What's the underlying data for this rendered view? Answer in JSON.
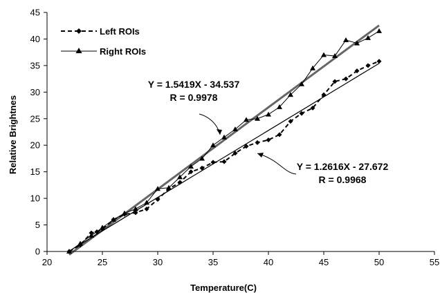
{
  "chart_data": {
    "type": "line",
    "xlabel": "Temperature(C)",
    "ylabel": "Relative Brightnes",
    "xlim": [
      20,
      55
    ],
    "ylim": [
      0,
      45
    ],
    "xticks": [
      20,
      25,
      30,
      35,
      40,
      45,
      50,
      55
    ],
    "yticks": [
      0,
      5,
      10,
      15,
      20,
      25,
      30,
      35,
      40,
      45
    ],
    "grid": false,
    "legend_position": "top-left",
    "series": [
      {
        "name": "Left ROIs",
        "style": "dashed",
        "marker": "diamond",
        "x": [
          22,
          23,
          24,
          24.5,
          25,
          26,
          27,
          28,
          29,
          30,
          31,
          32,
          33,
          34,
          35,
          36,
          37,
          38,
          39,
          40,
          41,
          42,
          43,
          44,
          45,
          46,
          47,
          48,
          49,
          50
        ],
        "y": [
          0,
          1.2,
          3.5,
          3.7,
          4.2,
          6,
          7,
          7.3,
          8,
          9.8,
          11.8,
          13,
          15,
          15.7,
          16.8,
          16.9,
          18.5,
          19.8,
          20.5,
          21,
          22,
          24.5,
          26,
          27,
          29.5,
          32,
          32.5,
          34,
          35,
          35.8
        ]
      },
      {
        "name": "Right ROIs",
        "style": "solid",
        "marker": "triangle",
        "x": [
          22,
          23,
          24,
          25,
          26,
          27,
          28,
          29,
          30,
          31,
          32,
          33,
          34,
          35,
          36,
          37,
          38,
          39,
          40,
          41,
          42,
          43,
          44,
          45,
          46,
          47,
          48,
          49,
          50
        ],
        "y": [
          0,
          1.5,
          3,
          4.5,
          6,
          7.2,
          8,
          9.2,
          11.8,
          12,
          14,
          16,
          17.5,
          20,
          21.5,
          23,
          24.8,
          25,
          25.8,
          27.2,
          29.5,
          31.5,
          34.5,
          37,
          36.8,
          39.8,
          39.2,
          40.2,
          41.5
        ]
      }
    ],
    "trendlines": [
      {
        "slope": 1.5419,
        "intercept": -34.537,
        "x_range": [
          22,
          50
        ]
      },
      {
        "slope": 1.2616,
        "intercept": -27.672,
        "x_range": [
          22,
          50
        ]
      }
    ],
    "annotations": [
      {
        "equation": "Y = 1.5419X - 34.537",
        "r": "R = 0.9978"
      },
      {
        "equation": "Y = 1.2616X - 27.672",
        "r": "R = 0.9968"
      }
    ]
  }
}
